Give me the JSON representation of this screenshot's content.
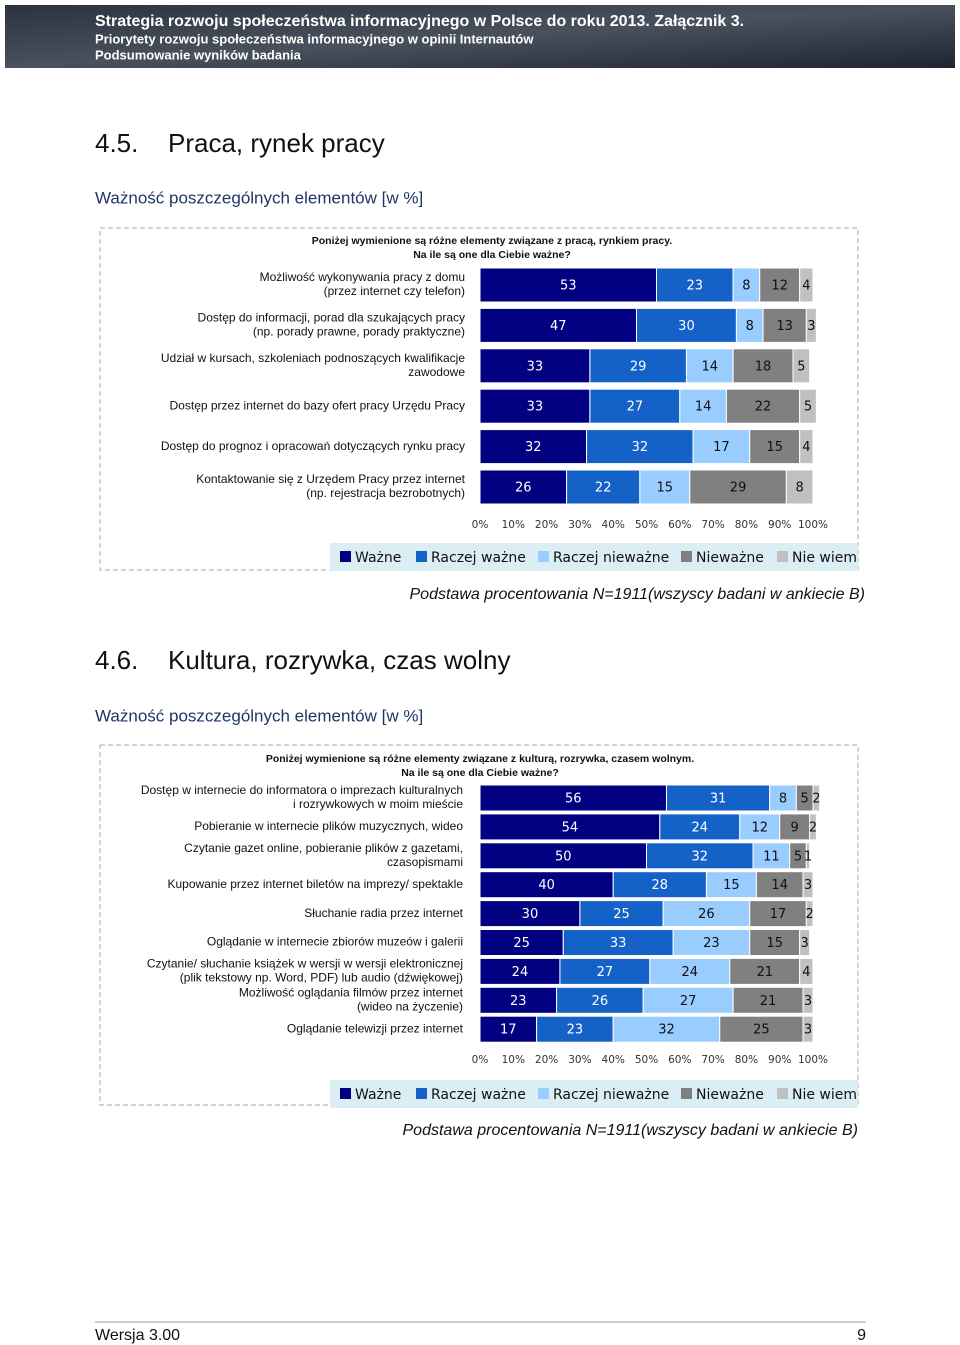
{
  "header": {
    "line1": "Strategia rozwoju społeczeństwa informacyjnego w Polsce do roku 2013. Załącznik 3.",
    "line2": "Priorytety rozwoju społeczeństwa informacyjnego w opinii Internautów",
    "line3": "Podsumowanie wyników badania"
  },
  "sections": [
    {
      "number": "4.5.",
      "title": "Praca, rynek pracy",
      "subtitle": "Ważność poszczególnych elementów [w %]",
      "note": "Podstawa procentowania N=1911(wszyscy badani w ankiecie B)"
    },
    {
      "number": "4.6.",
      "title": "Kultura, rozrywka, czas wolny",
      "subtitle": "Ważność poszczególnych elementów [w %]",
      "note": "Podstawa procentowania N=1911(wszyscy badani w ankiecie B)"
    }
  ],
  "chart_data": [
    {
      "type": "bar",
      "orientation": "horizontal",
      "stacked": true,
      "title": "Poniżej  wymienione są różne elementy związane z  pracą, rynkiem pracy.",
      "subtitle": "Na ile są one dla Ciebie ważne?",
      "categories": [
        "Możliwość wykonywania pracy z domu\n(przez internet czy telefon)",
        "Dostęp do informacji, porad dla szukających pracy\n(np. porady prawne, porady praktyczne)",
        "Udział w kursach, szkoleniach podnoszących kwalifikacje\nzawodowe",
        "Dostęp przez internet do bazy ofert pracy Urzędu Pracy",
        "Dostęp do prognoz i opracowań dotyczących rynku pracy",
        "Kontaktowanie się z Urzędem Pracy przez internet\n(np. rejestracja bezrobotnych)"
      ],
      "series": [
        {
          "name": "Ważne",
          "color": "#000080",
          "values": [
            53,
            47,
            33,
            33,
            32,
            26
          ]
        },
        {
          "name": "Raczej ważne",
          "color": "#1462c8",
          "values": [
            23,
            30,
            29,
            27,
            32,
            22
          ]
        },
        {
          "name": "Raczej nieważne",
          "color": "#99ccff",
          "values": [
            8,
            8,
            14,
            14,
            17,
            15
          ]
        },
        {
          "name": "Nieważne",
          "color": "#808080",
          "values": [
            12,
            13,
            18,
            22,
            15,
            29
          ]
        },
        {
          "name": "Nie wiem",
          "color": "#c0c0c0",
          "values": [
            4,
            3,
            5,
            5,
            4,
            8
          ]
        }
      ],
      "xlim": [
        0,
        100
      ],
      "xticks": [
        {
          "value": 0,
          "label": "0%"
        },
        {
          "value": 10,
          "label": "10%"
        },
        {
          "value": 20,
          "label": "20%"
        },
        {
          "value": 30,
          "label": "30%"
        },
        {
          "value": 40,
          "label": "40%"
        },
        {
          "value": 50,
          "label": "50%"
        },
        {
          "value": 60,
          "label": "60%"
        },
        {
          "value": 70,
          "label": "70%"
        },
        {
          "value": 80,
          "label": "80%"
        },
        {
          "value": 90,
          "label": "90%"
        },
        {
          "value": 100,
          "label": "100%"
        }
      ],
      "legend": "bottom"
    },
    {
      "type": "bar",
      "orientation": "horizontal",
      "stacked": true,
      "title": "Poniżej  wymienione są różne elementy związane z  kulturą, rozrywka, czasem wolnym.",
      "subtitle": "Na ile są one dla Ciebie ważne?",
      "categories": [
        "Dostęp w internecie do informatora o imprezach kulturalnych\ni rozrywkowych w moim mieście",
        "Pobieranie w internecie plików muzycznych, wideo",
        "Czytanie gazet online, pobieranie plików z gazetami,\nczasopismami",
        "Kupowanie przez internet biletów na imprezy/ spektakle",
        "Słuchanie radia przez internet",
        "Oglądanie w internecie zbiorów muzeów i galerii",
        "Czytanie/ słuchanie książek w wersji w wersji elektronicznej\n(plik tekstowy np. Word, PDF) lub audio (dźwiękowej)",
        "Możliwość oglądania filmów przez internet\n(wideo na życzenie)",
        "Oglądanie telewizji przez internet"
      ],
      "series": [
        {
          "name": "Ważne",
          "color": "#000080",
          "values": [
            56,
            54,
            50,
            40,
            30,
            25,
            24,
            23,
            17
          ]
        },
        {
          "name": "Raczej ważne",
          "color": "#1462c8",
          "values": [
            31,
            24,
            32,
            28,
            25,
            33,
            27,
            26,
            23
          ]
        },
        {
          "name": "Raczej nieważne",
          "color": "#99ccff",
          "values": [
            8,
            12,
            11,
            15,
            26,
            23,
            24,
            27,
            32
          ]
        },
        {
          "name": "Nieważne",
          "color": "#808080",
          "values": [
            5,
            9,
            5,
            14,
            17,
            15,
            21,
            21,
            25
          ]
        },
        {
          "name": "Nie wiem",
          "color": "#c0c0c0",
          "values": [
            2,
            2,
            1,
            3,
            2,
            3,
            4,
            3,
            3
          ]
        }
      ],
      "xlim": [
        0,
        100
      ],
      "xticks": [
        {
          "value": 0,
          "label": "0%"
        },
        {
          "value": 10,
          "label": "10%"
        },
        {
          "value": 20,
          "label": "20%"
        },
        {
          "value": 30,
          "label": "30%"
        },
        {
          "value": 40,
          "label": "40%"
        },
        {
          "value": 50,
          "label": "50%"
        },
        {
          "value": 60,
          "label": "60%"
        },
        {
          "value": 70,
          "label": "70%"
        },
        {
          "value": 80,
          "label": "80%"
        },
        {
          "value": 90,
          "label": "90%"
        },
        {
          "value": 100,
          "label": "100%"
        }
      ],
      "legend": "bottom"
    }
  ],
  "footer": {
    "version": "Wersja 3.00",
    "page": "9"
  }
}
